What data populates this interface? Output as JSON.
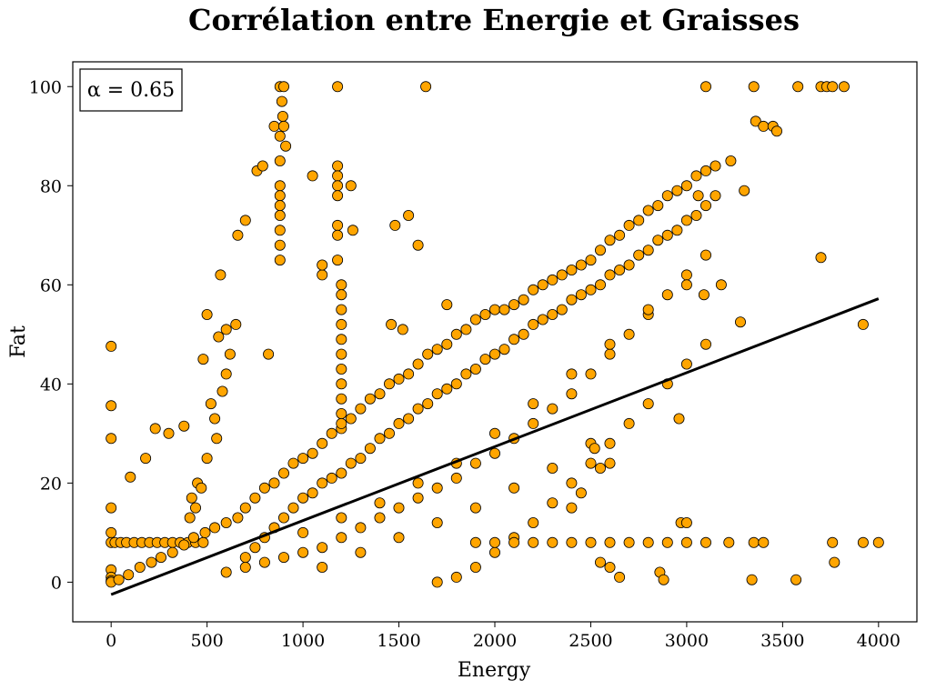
{
  "chart_data": {
    "type": "scatter",
    "title": "Corrélation entre Energie et Graisses",
    "xlabel": "Energy",
    "ylabel": "Fat",
    "xlim": [
      -200,
      4200
    ],
    "ylim": [
      -8,
      105
    ],
    "xticks": [
      0,
      500,
      1000,
      1500,
      2000,
      2500,
      3000,
      3500,
      4000
    ],
    "yticks": [
      0,
      20,
      40,
      60,
      80,
      100
    ],
    "grid": false,
    "annotation": "α = 0.65",
    "point_color": "#ffa500",
    "point_edge_color": "#000000",
    "regression": {
      "x": [
        0,
        4000
      ],
      "y": [
        -2.5,
        57.2
      ],
      "color": "#000000"
    },
    "series": [
      {
        "points": [
          [
            0,
            47.6
          ],
          [
            0,
            35.6
          ],
          [
            0,
            29
          ],
          [
            0,
            15
          ],
          [
            0,
            10
          ],
          [
            0,
            8
          ],
          [
            0,
            2.5
          ],
          [
            0,
            1
          ],
          [
            0,
            0.3
          ],
          [
            0,
            0
          ],
          [
            20,
            8
          ],
          [
            50,
            8
          ],
          [
            80,
            8
          ],
          [
            120,
            8
          ],
          [
            160,
            8
          ],
          [
            200,
            8
          ],
          [
            240,
            8
          ],
          [
            280,
            8
          ],
          [
            320,
            8
          ],
          [
            360,
            8
          ],
          [
            400,
            8
          ],
          [
            440,
            8
          ],
          [
            480,
            8
          ],
          [
            40,
            0.5
          ],
          [
            90,
            1.5
          ],
          [
            150,
            3
          ],
          [
            210,
            4
          ],
          [
            260,
            5
          ],
          [
            320,
            6
          ],
          [
            380,
            7.5
          ],
          [
            430,
            9
          ],
          [
            490,
            10
          ],
          [
            540,
            11
          ],
          [
            600,
            12
          ],
          [
            660,
            13
          ],
          [
            100,
            21.2
          ],
          [
            180,
            25
          ],
          [
            230,
            31
          ],
          [
            300,
            30
          ],
          [
            380,
            31.5
          ],
          [
            420,
            17
          ],
          [
            450,
            20
          ],
          [
            480,
            45
          ],
          [
            500,
            54
          ],
          [
            520,
            36
          ],
          [
            540,
            33
          ],
          [
            560,
            49.5
          ],
          [
            580,
            38.5
          ],
          [
            600,
            51
          ],
          [
            620,
            46
          ],
          [
            650,
            52
          ],
          [
            660,
            70
          ],
          [
            700,
            73
          ],
          [
            760,
            83
          ],
          [
            790,
            84
          ],
          [
            820,
            46
          ],
          [
            570,
            62
          ],
          [
            600,
            42
          ],
          [
            550,
            29
          ],
          [
            500,
            25
          ],
          [
            470,
            19
          ],
          [
            440,
            15
          ],
          [
            410,
            13
          ],
          [
            850,
            92
          ],
          [
            880,
            100
          ],
          [
            890,
            97
          ],
          [
            895,
            94
          ],
          [
            900,
            100
          ],
          [
            880,
            90
          ],
          [
            880,
            85
          ],
          [
            880,
            80
          ],
          [
            880,
            78
          ],
          [
            880,
            76
          ],
          [
            880,
            74
          ],
          [
            880,
            71
          ],
          [
            880,
            68
          ],
          [
            880,
            65
          ],
          [
            900,
            92
          ],
          [
            910,
            88
          ],
          [
            1050,
            82
          ],
          [
            1100,
            62
          ],
          [
            1100,
            64
          ],
          [
            1180,
            84
          ],
          [
            1180,
            82
          ],
          [
            1180,
            80
          ],
          [
            1180,
            78
          ],
          [
            1180,
            72
          ],
          [
            1180,
            70
          ],
          [
            1180,
            65
          ],
          [
            1200,
            60
          ],
          [
            1200,
            58
          ],
          [
            1200,
            55
          ],
          [
            1200,
            52
          ],
          [
            1200,
            49
          ],
          [
            1200,
            46
          ],
          [
            1200,
            43
          ],
          [
            1200,
            40
          ],
          [
            1200,
            37
          ],
          [
            1200,
            34
          ],
          [
            1200,
            31
          ],
          [
            1250,
            80
          ],
          [
            1260,
            71
          ],
          [
            1180,
            100
          ],
          [
            1480,
            72
          ],
          [
            1550,
            74
          ],
          [
            1600,
            68
          ],
          [
            1460,
            52
          ],
          [
            1520,
            51
          ],
          [
            1640,
            100
          ],
          [
            1750,
            56
          ],
          [
            700,
            15
          ],
          [
            750,
            17
          ],
          [
            800,
            19
          ],
          [
            850,
            20
          ],
          [
            900,
            22
          ],
          [
            950,
            24
          ],
          [
            1000,
            25
          ],
          [
            1050,
            26
          ],
          [
            1100,
            28
          ],
          [
            1150,
            30
          ],
          [
            1200,
            32
          ],
          [
            1250,
            33
          ],
          [
            1300,
            35
          ],
          [
            1350,
            37
          ],
          [
            1400,
            38
          ],
          [
            1450,
            40
          ],
          [
            1500,
            41
          ],
          [
            1550,
            42
          ],
          [
            1600,
            44
          ],
          [
            1650,
            46
          ],
          [
            1700,
            47
          ],
          [
            1750,
            48
          ],
          [
            1800,
            50
          ],
          [
            1850,
            51
          ],
          [
            1900,
            53
          ],
          [
            1950,
            54
          ],
          [
            2000,
            55
          ],
          [
            2050,
            55
          ],
          [
            2100,
            56
          ],
          [
            2150,
            57
          ],
          [
            2200,
            59
          ],
          [
            2250,
            60
          ],
          [
            2300,
            61
          ],
          [
            2350,
            62
          ],
          [
            2400,
            63
          ],
          [
            2450,
            64
          ],
          [
            2500,
            65
          ],
          [
            2550,
            67
          ],
          [
            2600,
            69
          ],
          [
            2650,
            70
          ],
          [
            2700,
            72
          ],
          [
            2750,
            73
          ],
          [
            2800,
            75
          ],
          [
            2850,
            76
          ],
          [
            2900,
            78
          ],
          [
            2950,
            79
          ],
          [
            3000,
            80
          ],
          [
            3050,
            82
          ],
          [
            3100,
            83
          ],
          [
            3150,
            84
          ],
          [
            3230,
            85
          ],
          [
            700,
            5
          ],
          [
            750,
            7
          ],
          [
            800,
            9
          ],
          [
            850,
            11
          ],
          [
            900,
            13
          ],
          [
            950,
            15
          ],
          [
            1000,
            17
          ],
          [
            1050,
            18
          ],
          [
            1100,
            20
          ],
          [
            1150,
            21
          ],
          [
            1200,
            22
          ],
          [
            1250,
            24
          ],
          [
            1300,
            25
          ],
          [
            1350,
            27
          ],
          [
            1400,
            29
          ],
          [
            1450,
            30
          ],
          [
            1500,
            32
          ],
          [
            1550,
            33
          ],
          [
            1600,
            35
          ],
          [
            1650,
            36
          ],
          [
            1700,
            38
          ],
          [
            1750,
            39
          ],
          [
            1800,
            40
          ],
          [
            1850,
            42
          ],
          [
            1900,
            43
          ],
          [
            1950,
            45
          ],
          [
            2000,
            46
          ],
          [
            2050,
            47
          ],
          [
            2100,
            49
          ],
          [
            2150,
            50
          ],
          [
            2200,
            52
          ],
          [
            2250,
            53
          ],
          [
            2300,
            54
          ],
          [
            2350,
            55
          ],
          [
            2400,
            57
          ],
          [
            2450,
            58
          ],
          [
            2500,
            59
          ],
          [
            2550,
            60
          ],
          [
            2600,
            62
          ],
          [
            2650,
            63
          ],
          [
            2700,
            64
          ],
          [
            2750,
            66
          ],
          [
            2800,
            67
          ],
          [
            2850,
            69
          ],
          [
            2900,
            70
          ],
          [
            2950,
            71
          ],
          [
            3000,
            73
          ],
          [
            3050,
            74
          ],
          [
            3100,
            76
          ],
          [
            600,
            2
          ],
          [
            700,
            3
          ],
          [
            800,
            4
          ],
          [
            900,
            5
          ],
          [
            1000,
            6
          ],
          [
            1100,
            7
          ],
          [
            1200,
            9
          ],
          [
            1300,
            11
          ],
          [
            1400,
            13
          ],
          [
            1500,
            15
          ],
          [
            1600,
            17
          ],
          [
            1700,
            19
          ],
          [
            1800,
            21
          ],
          [
            1900,
            24
          ],
          [
            2000,
            26
          ],
          [
            2100,
            29
          ],
          [
            2200,
            32
          ],
          [
            2300,
            35
          ],
          [
            2400,
            38
          ],
          [
            2500,
            42
          ],
          [
            2600,
            46
          ],
          [
            2700,
            50
          ],
          [
            2800,
            54
          ],
          [
            2900,
            58
          ],
          [
            3000,
            62
          ],
          [
            3100,
            66
          ],
          [
            1700,
            0
          ],
          [
            1800,
            1
          ],
          [
            1900,
            3
          ],
          [
            2000,
            6
          ],
          [
            2100,
            9
          ],
          [
            2200,
            12
          ],
          [
            2300,
            16
          ],
          [
            2400,
            20
          ],
          [
            2500,
            24
          ],
          [
            2600,
            28
          ],
          [
            2700,
            32
          ],
          [
            2800,
            36
          ],
          [
            2900,
            40
          ],
          [
            3000,
            44
          ],
          [
            3100,
            48
          ],
          [
            1000,
            10
          ],
          [
            1200,
            13
          ],
          [
            1400,
            16
          ],
          [
            1600,
            20
          ],
          [
            1800,
            24
          ],
          [
            2000,
            30
          ],
          [
            2200,
            36
          ],
          [
            2400,
            42
          ],
          [
            2600,
            48
          ],
          [
            2800,
            55
          ],
          [
            3000,
            60
          ],
          [
            1100,
            3
          ],
          [
            1300,
            6
          ],
          [
            1500,
            9
          ],
          [
            1700,
            12
          ],
          [
            1900,
            15
          ],
          [
            2100,
            19
          ],
          [
            2300,
            23
          ],
          [
            1900,
            8
          ],
          [
            2000,
            8
          ],
          [
            2100,
            8
          ],
          [
            2200,
            8
          ],
          [
            2300,
            8
          ],
          [
            2400,
            8
          ],
          [
            2500,
            8
          ],
          [
            2600,
            8
          ],
          [
            2700,
            8
          ],
          [
            2800,
            8
          ],
          [
            2900,
            8
          ],
          [
            3000,
            8
          ],
          [
            3100,
            8
          ],
          [
            3220,
            8
          ],
          [
            3350,
            8
          ],
          [
            3400,
            8
          ],
          [
            3760,
            8
          ],
          [
            3920,
            8
          ],
          [
            4000,
            8
          ],
          [
            2400,
            15
          ],
          [
            2450,
            18
          ],
          [
            2500,
            28
          ],
          [
            2550,
            23
          ],
          [
            2600,
            24
          ],
          [
            2520,
            27
          ],
          [
            2550,
            4
          ],
          [
            2600,
            3
          ],
          [
            2650,
            1
          ],
          [
            2860,
            2
          ],
          [
            2880,
            0.5
          ],
          [
            2960,
            33
          ],
          [
            2970,
            12
          ],
          [
            3000,
            12
          ],
          [
            3280,
            52.5
          ],
          [
            3340,
            0.5
          ],
          [
            3570,
            0.5
          ],
          [
            3770,
            4
          ],
          [
            3700,
            65.5
          ],
          [
            3920,
            52
          ],
          [
            3100,
            100
          ],
          [
            3350,
            100
          ],
          [
            3580,
            100
          ],
          [
            3700,
            100
          ],
          [
            3730,
            100
          ],
          [
            3760,
            100
          ],
          [
            3820,
            100
          ],
          [
            3360,
            93
          ],
          [
            3400,
            92
          ],
          [
            3450,
            92
          ],
          [
            3470,
            91
          ],
          [
            3300,
            79
          ],
          [
            3180,
            60
          ],
          [
            3090,
            58
          ],
          [
            3060,
            78
          ],
          [
            3150,
            78
          ]
        ]
      }
    ]
  }
}
